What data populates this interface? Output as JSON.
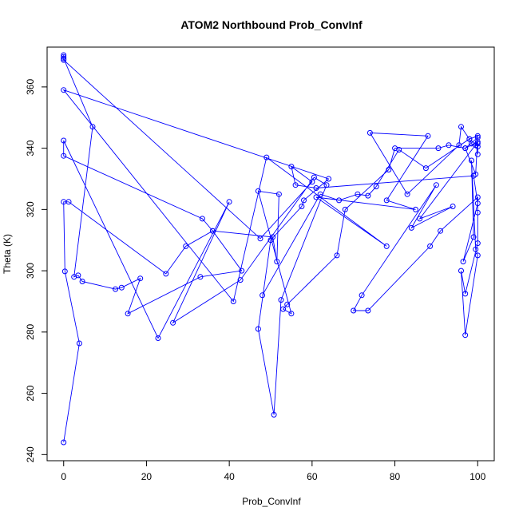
{
  "chart_data": {
    "type": "line",
    "title": "ATOM2 Northbound Prob_ConvInf",
    "xlabel": "Prob_ConvInf",
    "ylabel": "Theta (K)",
    "xlim": [
      -4,
      104
    ],
    "ylim": [
      238,
      373
    ],
    "x_ticks": [
      0,
      20,
      40,
      60,
      80,
      100
    ],
    "y_ticks": [
      240,
      260,
      280,
      300,
      320,
      340,
      360
    ],
    "grid": false,
    "legend": "none",
    "colors": {
      "series": "#0000ff",
      "axis": "#000000",
      "background": "#ffffff"
    },
    "series": [
      {
        "marker": "open-circle",
        "points": [
          [
            0,
            244
          ],
          [
            3.8,
            276.3
          ],
          [
            0.3,
            299.8
          ],
          [
            0,
            322.5
          ],
          [
            1.2,
            322.5
          ],
          [
            24.7,
            299
          ],
          [
            29.5,
            308
          ],
          [
            36,
            313
          ],
          [
            33.5,
            317
          ],
          [
            0,
            337.5
          ],
          [
            0,
            342.5
          ],
          [
            22.8,
            278
          ],
          [
            40,
            322.5
          ],
          [
            26.4,
            283
          ],
          [
            42.7,
            297
          ],
          [
            60.5,
            330.5
          ],
          [
            63.5,
            328
          ],
          [
            52.5,
            290.5
          ],
          [
            50.8,
            253
          ],
          [
            47,
            281
          ],
          [
            50,
            310
          ],
          [
            57.5,
            321
          ],
          [
            58,
            323
          ],
          [
            64,
            330
          ],
          [
            0,
            359
          ],
          [
            41,
            290
          ],
          [
            49,
            337
          ],
          [
            78,
            308
          ],
          [
            61,
            324
          ],
          [
            85,
            320
          ],
          [
            78,
            323
          ],
          [
            88,
            344
          ],
          [
            74,
            345
          ],
          [
            83,
            325
          ],
          [
            95.5,
            341
          ],
          [
            96,
            347
          ],
          [
            98,
            343
          ],
          [
            100,
            344
          ],
          [
            99.5,
            331.5
          ],
          [
            97,
            340
          ],
          [
            100,
            342
          ],
          [
            86,
            317
          ],
          [
            94,
            321
          ],
          [
            84,
            314
          ],
          [
            90,
            328
          ],
          [
            72,
            292
          ],
          [
            70,
            287
          ],
          [
            73.5,
            287
          ],
          [
            88.5,
            308
          ],
          [
            91,
            313
          ],
          [
            100,
            324
          ],
          [
            100,
            319
          ],
          [
            100,
            309
          ],
          [
            97,
            292.5
          ],
          [
            96,
            300
          ],
          [
            97,
            279
          ],
          [
            100,
            305
          ],
          [
            99.5,
            307
          ],
          [
            98.5,
            336
          ],
          [
            99,
            311
          ],
          [
            96.5,
            303
          ],
          [
            100,
            322
          ],
          [
            99,
            331
          ],
          [
            61,
            327
          ],
          [
            56,
            328
          ],
          [
            55,
            334
          ],
          [
            60,
            329
          ],
          [
            47.5,
            310.5
          ],
          [
            0,
            368.8
          ],
          [
            0,
            369.8
          ],
          [
            0,
            370.4
          ],
          [
            0,
            369.3
          ],
          [
            7,
            347
          ],
          [
            2.5,
            298
          ],
          [
            3.5,
            298.5
          ],
          [
            4.5,
            296.5
          ],
          [
            12.5,
            294
          ],
          [
            14,
            294.5
          ],
          [
            18.5,
            297.5
          ],
          [
            15.5,
            286
          ],
          [
            33,
            298
          ],
          [
            43,
            300
          ],
          [
            36,
            313
          ],
          [
            50.5,
            311
          ],
          [
            51.5,
            303
          ],
          [
            52,
            325
          ],
          [
            47,
            326
          ],
          [
            55,
            286
          ],
          [
            53,
            287.5
          ],
          [
            54,
            289
          ],
          [
            66,
            305
          ],
          [
            68,
            320
          ],
          [
            78.5,
            333
          ],
          [
            80,
            340
          ],
          [
            90.5,
            340
          ],
          [
            93,
            341
          ],
          [
            97,
            340
          ],
          [
            100,
            343.5
          ],
          [
            100,
            338
          ],
          [
            100,
            340.5
          ],
          [
            100,
            341.5
          ],
          [
            99.5,
            341
          ],
          [
            98.5,
            341.5
          ],
          [
            98,
            343
          ],
          [
            87.5,
            333.5
          ],
          [
            81,
            339.5
          ],
          [
            75.5,
            327.5
          ],
          [
            73.5,
            324.5
          ],
          [
            71,
            325
          ],
          [
            66.5,
            323
          ],
          [
            62,
            325
          ],
          [
            48,
            292
          ]
        ]
      }
    ]
  }
}
